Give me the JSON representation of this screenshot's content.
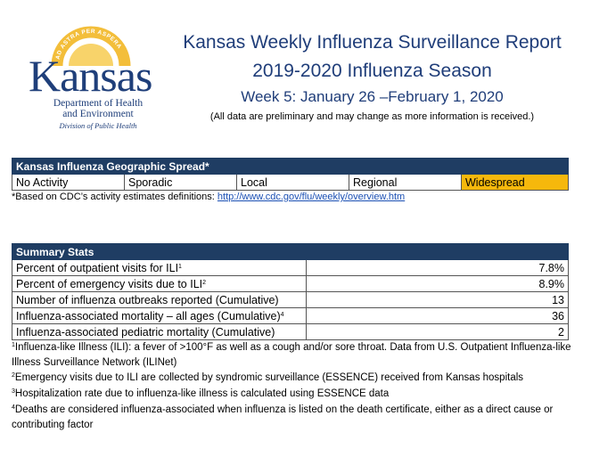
{
  "logo": {
    "motto": "AD ASTRA PER ASPERA",
    "brand": "Kansas",
    "dept_line1": "Department of Health",
    "dept_line2": "and Environment",
    "division": "Division of Public Health"
  },
  "header": {
    "title": "Kansas Weekly Influenza Surveillance Report",
    "season": "2019-2020 Influenza Season",
    "week": "Week 5: January 26 –February 1, 2020",
    "note": "(All data are preliminary and may change as more information is received.)"
  },
  "spread": {
    "heading": "Kansas Influenza Geographic Spread*",
    "levels": [
      "No Activity",
      "Sporadic",
      "Local",
      "Regional",
      "Widespread"
    ],
    "active_level": "Widespread",
    "footnote_prefix": "*Based on CDC’s activity estimates definitions: ",
    "footnote_link": "http://www.cdc.gov/flu/weekly/overview.htm"
  },
  "summary": {
    "heading": "Summary Stats",
    "rows": [
      {
        "label": "Percent of outpatient visits for ILI",
        "sup": "1",
        "value": "7.8%"
      },
      {
        "label": "Percent of emergency visits due to ILI",
        "sup": "2",
        "value": "8.9%"
      },
      {
        "label": "Number of influenza outbreaks reported (Cumulative)",
        "sup": "",
        "value": "13"
      },
      {
        "label": "Influenza-associated mortality – all ages (Cumulative)",
        "sup": "4",
        "value": "36"
      },
      {
        "label": "Influenza-associated pediatric mortality (Cumulative)",
        "sup": "",
        "value": "2"
      }
    ]
  },
  "footnotes": [
    {
      "mark": "1",
      "text": "Influenza-like Illness (ILI): a fever of >100°F as well as a cough and/or sore throat. Data from U.S. Outpatient Influenza-like Illness Surveillance Network (ILINet)"
    },
    {
      "mark": "2",
      "text": "Emergency visits due to ILI are collected by syndromic surveillance (ESSENCE) received from Kansas hospitals"
    },
    {
      "mark": "3",
      "text": "Hospitalization rate due to influenza-like illness is calculated using ESSENCE data"
    },
    {
      "mark": "4",
      "text": "Deaths are considered influenza-associated when influenza is listed on the death certificate, either as a direct cause or contributing factor"
    }
  ]
}
